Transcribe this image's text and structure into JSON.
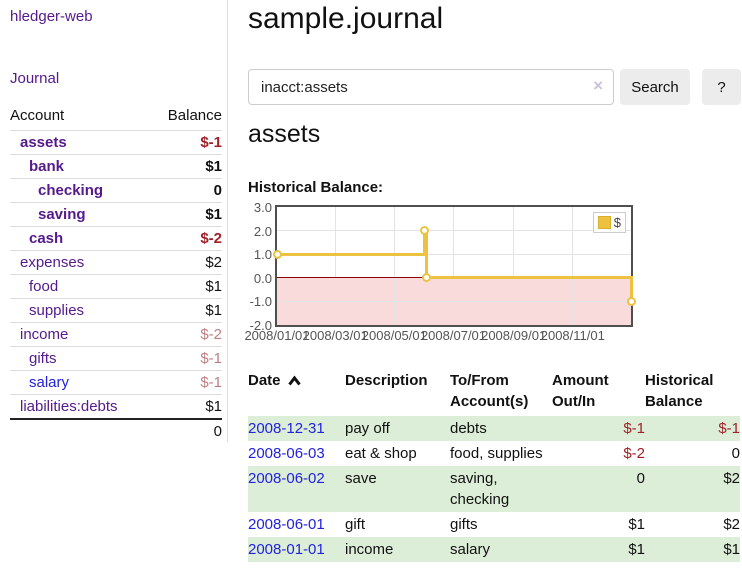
{
  "colors": {
    "link_purple": "#551a8b",
    "link_blue": "#2222dd",
    "negative": "#a02228",
    "negative_soft": "#bd8084",
    "row_stripe_green": "#ddeed8",
    "series_yellow": "#edc240",
    "negative_region_pink": "#fadbdb",
    "zero_line_red": "#8b0000",
    "chart_border": "#4f4f4f",
    "grid": "#e4e4e4",
    "button_bg": "#ececec"
  },
  "sidebar": {
    "brand": "hledger-web",
    "journal_link": "Journal",
    "table": {
      "headers": [
        "Account",
        "Balance"
      ],
      "rows": [
        {
          "name": "assets",
          "balance": "$-1",
          "level": 1,
          "bold": true,
          "neg": "strong"
        },
        {
          "name": "bank",
          "balance": "$1",
          "level": 2,
          "bold": true
        },
        {
          "name": "checking",
          "balance": "0",
          "level": 3,
          "bold": true
        },
        {
          "name": "saving",
          "balance": "$1",
          "level": 3,
          "bold": true
        },
        {
          "name": "cash",
          "balance": "$-2",
          "level": 2,
          "bold": true,
          "neg": "strong"
        },
        {
          "name": "expenses",
          "balance": "$2",
          "level": 1
        },
        {
          "name": "food",
          "balance": "$1",
          "level": 2
        },
        {
          "name": "supplies",
          "balance": "$1",
          "level": 2
        },
        {
          "name": "income",
          "balance": "$-2",
          "level": 1,
          "neg": "soft"
        },
        {
          "name": "gifts",
          "balance": "$-1",
          "level": 2,
          "neg": "soft"
        },
        {
          "name": "salary",
          "balance": "$-1",
          "level": 2,
          "neg": "soft",
          "link": "blue"
        },
        {
          "name": "liabilities:debts",
          "balance": "$1",
          "level": 1
        }
      ],
      "total": "0"
    }
  },
  "main": {
    "title": "sample.journal",
    "search": {
      "value": "inacct:assets",
      "clear": "×",
      "button": "Search",
      "help": "?"
    },
    "account_heading": "assets"
  },
  "chart_data": {
    "type": "line",
    "step": true,
    "title": "Historical Balance:",
    "series": [
      {
        "name": "$",
        "color": "#edc240",
        "points": [
          [
            "2008-01-01",
            1
          ],
          [
            "2008-06-01",
            2
          ],
          [
            "2008-06-03",
            0
          ],
          [
            "2008-12-31",
            -1
          ]
        ]
      }
    ],
    "xlim": [
      "2008-01-01",
      "2008-12-31"
    ],
    "ylim": [
      -2,
      3
    ],
    "xticks": [
      {
        "x": "2008-01-01",
        "label": "2008/01/01"
      },
      {
        "x": "2008-03-01",
        "label": "2008/03/01"
      },
      {
        "x": "2008-05-01",
        "label": "2008/05/01"
      },
      {
        "x": "2008-07-01",
        "label": "2008/07/01"
      },
      {
        "x": "2008-09-01",
        "label": "2008/09/01"
      },
      {
        "x": "2008-11-01",
        "label": "2008/11/01"
      }
    ],
    "yticks": [
      {
        "v": 3,
        "label": "3.0"
      },
      {
        "v": 2,
        "label": "2.0"
      },
      {
        "v": 1,
        "label": "1.0"
      },
      {
        "v": 0,
        "label": "0.0"
      },
      {
        "v": -1,
        "label": "-1.0"
      },
      {
        "v": -2,
        "label": "-2.0"
      }
    ],
    "grid": true,
    "legend_position": "top-right",
    "negative_region_below": 0
  },
  "register": {
    "headers": [
      {
        "lines": [
          "Date"
        ],
        "sort": "asc",
        "align": "left"
      },
      {
        "lines": [
          "Description"
        ],
        "align": "left"
      },
      {
        "lines": [
          "To/From",
          "Account(s)"
        ],
        "align": "left"
      },
      {
        "lines": [
          "Amount",
          "Out/In"
        ],
        "align": "right"
      },
      {
        "lines": [
          "Historical",
          "Balance"
        ],
        "align": "right"
      }
    ],
    "rows": [
      {
        "date": "2008-12-31",
        "description": "pay off",
        "accounts": "debts",
        "amount": "$-1",
        "balance": "$-1",
        "striped": true
      },
      {
        "date": "2008-06-03",
        "description": "eat & shop",
        "accounts": "food, supplies",
        "amount": "$-2",
        "balance": "0",
        "striped": false
      },
      {
        "date": "2008-06-02",
        "description": "save",
        "accounts": "saving, checking",
        "amount": "0",
        "balance": "$2",
        "striped": true
      },
      {
        "date": "2008-06-01",
        "description": "gift",
        "accounts": "gifts",
        "amount": "$1",
        "balance": "$2",
        "striped": false
      },
      {
        "date": "2008-01-01",
        "description": "income",
        "accounts": "salary",
        "amount": "$1",
        "balance": "$1",
        "striped": true
      }
    ]
  }
}
